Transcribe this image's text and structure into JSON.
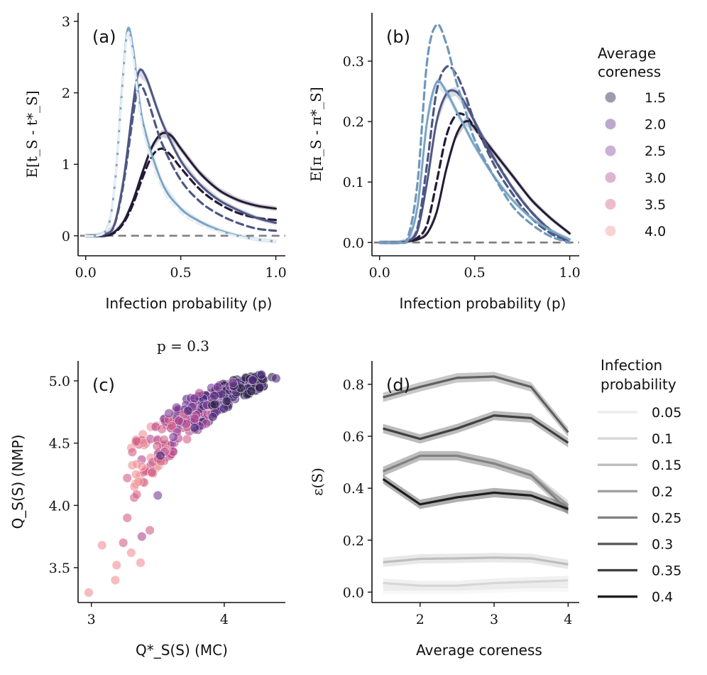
{
  "chart_data": [
    {
      "id": "a",
      "type": "line",
      "panel_label": "(a)",
      "xlabel": "Infection probability (p)",
      "ylabel": "E[t_S - t*_S]",
      "xlim": [
        -0.04,
        1.05
      ],
      "ylim": [
        -0.28,
        3.12
      ],
      "xticks": [
        {
          "v": 0.0,
          "label": "0.0"
        },
        {
          "v": 0.5,
          "label": "0.5"
        },
        {
          "v": 1.0,
          "label": "1.0"
        }
      ],
      "yticks": [
        {
          "v": 0,
          "label": "0"
        },
        {
          "v": 1,
          "label": "1"
        },
        {
          "v": 2,
          "label": "2"
        },
        {
          "v": 3,
          "label": "3"
        }
      ],
      "reference_line": 0,
      "series": [
        {
          "name": "coreness 1.5 solid",
          "color": "#231b37",
          "dash": false,
          "x": [
            0,
            0.05,
            0.1,
            0.15,
            0.2,
            0.25,
            0.3,
            0.35,
            0.4,
            0.45,
            0.5,
            0.6,
            0.7,
            0.8,
            0.9,
            1.0
          ],
          "y": [
            0,
            0,
            0,
            0.05,
            0.2,
            0.5,
            0.9,
            1.25,
            1.43,
            1.4,
            1.22,
            0.88,
            0.64,
            0.5,
            0.42,
            0.38
          ]
        },
        {
          "name": "coreness 1.5 dashed",
          "color": "#231b37",
          "dash": true,
          "x": [
            0,
            0.05,
            0.1,
            0.15,
            0.2,
            0.25,
            0.3,
            0.35,
            0.4,
            0.45,
            0.5,
            0.6,
            0.7,
            0.8,
            0.9,
            1.0
          ],
          "y": [
            0,
            0,
            0,
            0.04,
            0.18,
            0.45,
            0.82,
            1.12,
            1.22,
            1.12,
            0.95,
            0.65,
            0.45,
            0.32,
            0.25,
            0.22
          ]
        },
        {
          "name": "coreness 2.5 solid",
          "color": "#4e5783",
          "dash": false,
          "x": [
            0,
            0.05,
            0.1,
            0.15,
            0.2,
            0.25,
            0.28,
            0.32,
            0.4,
            0.5,
            0.6,
            0.7,
            0.8,
            0.9,
            1.0
          ],
          "y": [
            0,
            0,
            0.02,
            0.15,
            0.8,
            1.85,
            2.3,
            2.2,
            1.6,
            1.05,
            0.72,
            0.5,
            0.36,
            0.25,
            0.18
          ]
        },
        {
          "name": "coreness 2.5 dashed",
          "color": "#4e5783",
          "dash": true,
          "x": [
            0,
            0.05,
            0.1,
            0.15,
            0.2,
            0.25,
            0.28,
            0.32,
            0.4,
            0.5,
            0.6,
            0.7,
            0.8,
            0.9,
            1.0
          ],
          "y": [
            0,
            0,
            0.02,
            0.14,
            0.75,
            1.7,
            2.1,
            1.95,
            1.3,
            0.78,
            0.48,
            0.3,
            0.18,
            0.1,
            0.07
          ]
        },
        {
          "name": "coreness 4.0 solid",
          "color": "#7aa4c4",
          "dash": false,
          "x": [
            0,
            0.05,
            0.1,
            0.13,
            0.16,
            0.19,
            0.22,
            0.25,
            0.3,
            0.4,
            0.5,
            0.6,
            0.7,
            0.8,
            0.9,
            1.0
          ],
          "y": [
            0,
            0,
            0.05,
            0.25,
            0.9,
            2.0,
            2.88,
            2.6,
            1.6,
            0.75,
            0.38,
            0.2,
            0.08,
            0.0,
            -0.05,
            -0.08
          ]
        },
        {
          "name": "coreness 4.0 dashed",
          "color": "#e8eef4",
          "dash": true,
          "x": [
            0,
            0.05,
            0.1,
            0.13,
            0.16,
            0.19,
            0.22,
            0.25,
            0.3,
            0.4,
            0.5,
            0.6,
            0.7,
            0.8,
            0.9,
            1.0
          ],
          "y": [
            0,
            0,
            0.05,
            0.24,
            0.88,
            1.95,
            2.82,
            2.5,
            1.5,
            0.68,
            0.33,
            0.16,
            0.06,
            -0.01,
            -0.05,
            -0.08
          ]
        }
      ]
    },
    {
      "id": "b",
      "type": "line",
      "panel_label": "(b)",
      "xlabel": "Infection probability (p)",
      "ylabel": "E[π_S - π*_S]",
      "xlim": [
        -0.04,
        1.05
      ],
      "ylim": [
        -0.022,
        0.38
      ],
      "xticks": [
        {
          "v": 0.0,
          "label": "0.0"
        },
        {
          "v": 0.5,
          "label": "0.5"
        },
        {
          "v": 1.0,
          "label": "1.0"
        }
      ],
      "yticks": [
        {
          "v": 0.0,
          "label": "0.0"
        },
        {
          "v": 0.1,
          "label": "0.1"
        },
        {
          "v": 0.2,
          "label": "0.2"
        },
        {
          "v": 0.3,
          "label": "0.3"
        }
      ],
      "reference_line": 0,
      "series": [
        {
          "name": "coreness 1.5 solid",
          "color": "#231b37",
          "dash": false,
          "x": [
            0,
            0.1,
            0.15,
            0.2,
            0.25,
            0.3,
            0.35,
            0.4,
            0.45,
            0.5,
            0.6,
            0.7,
            0.8,
            0.9,
            1.0
          ],
          "y": [
            0,
            0,
            0.002,
            0.005,
            0.015,
            0.05,
            0.12,
            0.175,
            0.2,
            0.19,
            0.15,
            0.11,
            0.07,
            0.04,
            0.015
          ]
        },
        {
          "name": "coreness 1.5 dashed",
          "color": "#231b37",
          "dash": true,
          "x": [
            0,
            0.1,
            0.15,
            0.2,
            0.25,
            0.3,
            0.35,
            0.4,
            0.45,
            0.5,
            0.6,
            0.7,
            0.8,
            0.9,
            1.0
          ],
          "y": [
            0,
            0,
            0.002,
            0.008,
            0.03,
            0.1,
            0.175,
            0.21,
            0.21,
            0.19,
            0.14,
            0.09,
            0.05,
            0.02,
            0.0
          ]
        },
        {
          "name": "coreness 2.5 solid",
          "color": "#4e5783",
          "dash": false,
          "x": [
            0,
            0.1,
            0.15,
            0.2,
            0.25,
            0.3,
            0.35,
            0.4,
            0.45,
            0.5,
            0.6,
            0.7,
            0.8,
            0.9,
            1.0
          ],
          "y": [
            0,
            0,
            0.003,
            0.02,
            0.1,
            0.2,
            0.245,
            0.25,
            0.23,
            0.2,
            0.14,
            0.09,
            0.05,
            0.02,
            0.0
          ]
        },
        {
          "name": "coreness 2.5 dashed",
          "color": "#4e5783",
          "dash": true,
          "x": [
            0,
            0.1,
            0.15,
            0.2,
            0.25,
            0.3,
            0.35,
            0.4,
            0.45,
            0.5,
            0.6,
            0.7,
            0.8,
            0.9,
            1.0
          ],
          "y": [
            0,
            0,
            0.003,
            0.025,
            0.13,
            0.25,
            0.29,
            0.28,
            0.245,
            0.2,
            0.13,
            0.08,
            0.04,
            0.015,
            0.0
          ]
        },
        {
          "name": "coreness 4.0 solid",
          "color": "#7aa4c4",
          "dash": false,
          "x": [
            0,
            0.1,
            0.15,
            0.2,
            0.25,
            0.3,
            0.35,
            0.4,
            0.45,
            0.5,
            0.6,
            0.7,
            0.8,
            0.9,
            1.0
          ],
          "y": [
            0,
            0,
            0.005,
            0.06,
            0.2,
            0.265,
            0.25,
            0.22,
            0.19,
            0.16,
            0.11,
            0.07,
            0.04,
            0.02,
            0.005
          ]
        },
        {
          "name": "coreness 4.0 dashed",
          "color": "#6f98bb",
          "dash": true,
          "x": [
            0,
            0.1,
            0.15,
            0.2,
            0.25,
            0.3,
            0.35,
            0.4,
            0.45,
            0.5,
            0.6,
            0.7,
            0.8,
            0.9,
            1.0
          ],
          "y": [
            0,
            0,
            0.01,
            0.1,
            0.3,
            0.36,
            0.33,
            0.27,
            0.22,
            0.17,
            0.11,
            0.06,
            0.03,
            0.01,
            0.0
          ]
        }
      ]
    },
    {
      "id": "c",
      "type": "scatter",
      "panel_label": "(c)",
      "title": "p = 0.3",
      "xlabel": "Q*_S(S) (MC)",
      "ylabel": "Q_S(S) (NMP)",
      "xlim": [
        2.9,
        4.46
      ],
      "ylim": [
        3.22,
        5.16
      ],
      "xticks": [
        {
          "v": 3,
          "label": "3"
        },
        {
          "v": 4,
          "label": "4"
        }
      ],
      "yticks": [
        {
          "v": 3.5,
          "label": "3.5"
        },
        {
          "v": 4.0,
          "label": "4.0"
        },
        {
          "v": 4.5,
          "label": "4.5"
        },
        {
          "v": 5.0,
          "label": "5.0"
        }
      ],
      "points_note": "approx. 400 nodes; colour by average coreness (4.0 pink at low values to 1.5 dark purple at high values)",
      "points": [
        {
          "x": 2.98,
          "y": 3.3,
          "c": 4.0
        },
        {
          "x": 3.08,
          "y": 3.68,
          "c": 4.0
        },
        {
          "x": 3.18,
          "y": 3.4,
          "c": 4.0
        },
        {
          "x": 3.19,
          "y": 3.52,
          "c": 4.0
        },
        {
          "x": 3.24,
          "y": 3.7,
          "c": 3.5
        },
        {
          "x": 3.27,
          "y": 3.9,
          "c": 3.5
        },
        {
          "x": 3.3,
          "y": 3.62,
          "c": 4.0
        },
        {
          "x": 3.37,
          "y": 3.54,
          "c": 4.0
        },
        {
          "x": 3.38,
          "y": 3.75,
          "c": 3.0
        },
        {
          "x": 3.44,
          "y": 3.8,
          "c": 3.5
        },
        {
          "x": 3.27,
          "y": 4.22,
          "c": 3.5
        },
        {
          "x": 3.5,
          "y": 4.08,
          "c": 2.5
        },
        {
          "x": 3.52,
          "y": 4.4,
          "c": 2.0
        },
        {
          "x": 4.36,
          "y": 5.03,
          "c": 1.5
        },
        {
          "x": 4.39,
          "y": 5.02,
          "c": 2.0
        },
        {
          "x": 4.28,
          "y": 5.05,
          "c": 2.0
        }
      ],
      "band": {
        "description": "dense cloud of points rising from lower-left to upper-right",
        "x": [
          3.3,
          3.5,
          3.7,
          3.9,
          4.1,
          4.3
        ],
        "y_low": [
          3.85,
          4.15,
          4.4,
          4.6,
          4.78,
          4.92
        ],
        "y_high": [
          4.5,
          4.68,
          4.85,
          4.95,
          5.02,
          5.06
        ]
      }
    },
    {
      "id": "d",
      "type": "line",
      "panel_label": "(d)",
      "xlabel": "Average coreness",
      "ylabel": "ε(S)",
      "xlim": [
        1.35,
        4.15
      ],
      "ylim": [
        -0.04,
        0.89
      ],
      "xticks": [
        {
          "v": 2,
          "label": "2"
        },
        {
          "v": 3,
          "label": "3"
        },
        {
          "v": 4,
          "label": "4"
        }
      ],
      "yticks": [
        {
          "v": 0.0,
          "label": "0.0"
        },
        {
          "v": 0.2,
          "label": "0.2"
        },
        {
          "v": 0.4,
          "label": "0.4"
        },
        {
          "v": 0.6,
          "label": "0.6"
        },
        {
          "v": 0.8,
          "label": "0.8"
        }
      ],
      "x": [
        1.5,
        2.0,
        2.5,
        3.0,
        3.5,
        4.0
      ],
      "series": [
        {
          "name": "0.05",
          "color": "#ececec",
          "values": [
            0.01,
            0.01,
            0.01,
            0.015,
            0.02,
            0.02
          ]
        },
        {
          "name": "0.1",
          "color": "#d6d6d6",
          "values": [
            0.035,
            0.025,
            0.025,
            0.035,
            0.04,
            0.045
          ]
        },
        {
          "name": "0.15",
          "color": "#bdbdbd",
          "values": [
            0.115,
            0.128,
            0.13,
            0.133,
            0.13,
            0.107
          ]
        },
        {
          "name": "0.2",
          "color": "#a0a0a0",
          "values": [
            0.465,
            0.525,
            0.525,
            0.495,
            0.45,
            0.335
          ]
        },
        {
          "name": "0.25",
          "color": "#828282",
          "values": [
            0.465,
            0.525,
            0.525,
            0.495,
            0.45,
            0.315
          ]
        },
        {
          "name": "0.3",
          "color": "#606060",
          "values": [
            0.75,
            0.79,
            0.825,
            0.83,
            0.79,
            0.615
          ]
        },
        {
          "name": "0.35",
          "color": "#404040",
          "values": [
            0.63,
            0.59,
            0.63,
            0.68,
            0.67,
            0.575
          ]
        },
        {
          "name": "0.4",
          "color": "#1e1e1e",
          "values": [
            0.435,
            0.338,
            0.365,
            0.383,
            0.372,
            0.32
          ]
        }
      ]
    }
  ],
  "legends": {
    "coreness": {
      "title": [
        "Average",
        "coreness"
      ],
      "entries": [
        {
          "label": "1.5",
          "color": "#2d2148"
        },
        {
          "label": "2.0",
          "color": "#6a3d8d"
        },
        {
          "label": "2.5",
          "color": "#8e4f9e"
        },
        {
          "label": "3.0",
          "color": "#b9599d"
        },
        {
          "label": "3.5",
          "color": "#d86b86"
        },
        {
          "label": "4.0",
          "color": "#f29d9b"
        }
      ]
    },
    "infection": {
      "title": [
        "Infection",
        "probability"
      ],
      "entries": [
        {
          "label": "0.05",
          "color": "#ececec"
        },
        {
          "label": "0.1",
          "color": "#d6d6d6"
        },
        {
          "label": "0.15",
          "color": "#bdbdbd"
        },
        {
          "label": "0.2",
          "color": "#a0a0a0"
        },
        {
          "label": "0.25",
          "color": "#828282"
        },
        {
          "label": "0.3",
          "color": "#606060"
        },
        {
          "label": "0.35",
          "color": "#404040"
        },
        {
          "label": "0.4",
          "color": "#1e1e1e"
        }
      ]
    }
  }
}
